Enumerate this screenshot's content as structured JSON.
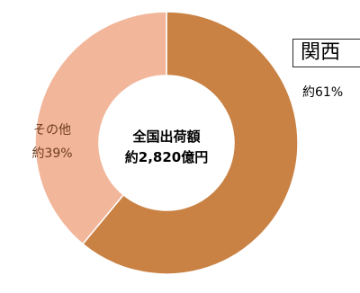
{
  "chart_data": {
    "type": "pie",
    "center_label": [
      "全国出荷額",
      "約2,820億円"
    ],
    "slices": [
      {
        "name": "関西",
        "value": 61,
        "value_label": "約61%",
        "color": "#c98244"
      },
      {
        "name": "その他",
        "value": 39,
        "value_label": "約39%",
        "color": "#f2b69b"
      }
    ]
  }
}
